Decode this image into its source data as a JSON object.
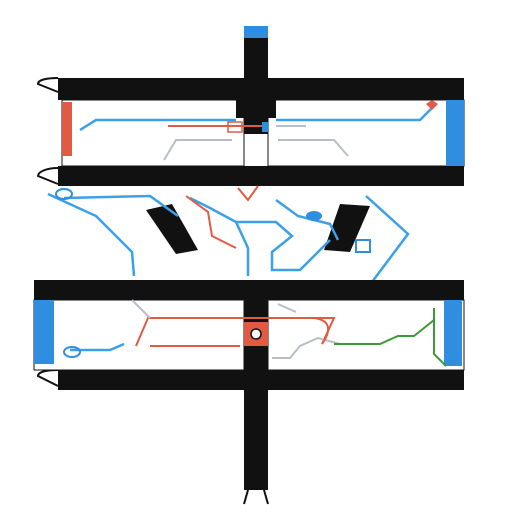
{
  "colors": {
    "track": "#111111",
    "blue_accent": "#2f8ee0",
    "line_blue": "#3aa0e8",
    "line_red": "#e05a44",
    "line_gray": "#b9bec6",
    "line_green": "#3a9a3a",
    "panel_bg": "#ffffff"
  },
  "labels": {
    "top_left_small": "",
    "top_left_title": "",
    "top_right_band": "",
    "mid_left": "",
    "mid_right": "",
    "right_band": "",
    "cross_left": "",
    "cross_right": "",
    "lower_right_band": "",
    "lower_left": "",
    "center_marker": "",
    "bottom_right": ""
  }
}
